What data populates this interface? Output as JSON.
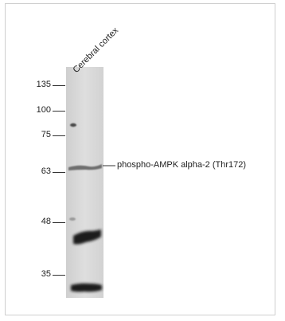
{
  "figure": {
    "lane_label": "Cerebral cortex",
    "band_label": "phospho-AMPK alpha-2 (Thr172)",
    "markers": [
      {
        "label": "135"
      },
      {
        "label": "100"
      },
      {
        "label": "75"
      },
      {
        "label": "63"
      },
      {
        "label": "48"
      },
      {
        "label": "35"
      }
    ],
    "colors": {
      "lane": "#d9d9d9",
      "band": "#1a1a1a",
      "text": "#222222"
    }
  }
}
